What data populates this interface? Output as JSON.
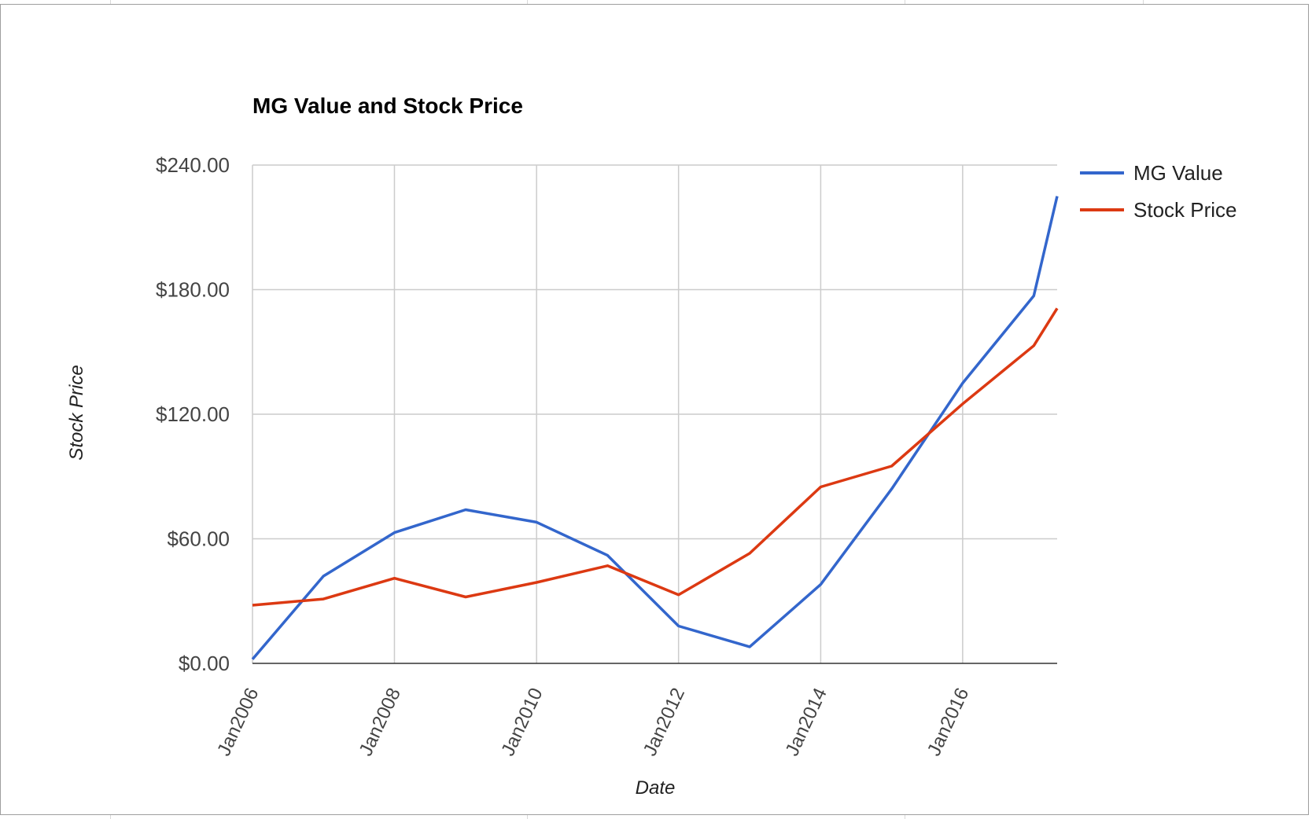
{
  "chart_data": {
    "type": "line",
    "title": "MG Value and Stock Price",
    "xlabel": "Date",
    "ylabel": "Stock Price",
    "x": [
      "2006-01-01",
      "2007-01-01",
      "2008-01-01",
      "2009-01-01",
      "2010-01-01",
      "2011-01-01",
      "2012-01-01",
      "2013-01-01",
      "2014-01-01",
      "2015-01-01",
      "2016-01-01",
      "2017-01-01",
      "2017-05-01"
    ],
    "x_ticks": [
      "Jan2006",
      "Jan2008",
      "Jan2010",
      "Jan2012",
      "Jan2014",
      "Jan2016"
    ],
    "x_tick_dates": [
      "2006-01-01",
      "2008-01-01",
      "2010-01-01",
      "2012-01-01",
      "2014-01-01",
      "2016-01-01"
    ],
    "xlim": [
      "2006-01-01",
      "2017-05-01"
    ],
    "y_ticks": [
      "$0.00",
      "$60.00",
      "$120.00",
      "$180.00",
      "$240.00"
    ],
    "y_tick_values": [
      0,
      60,
      120,
      180,
      240
    ],
    "ylim": [
      0,
      240
    ],
    "grid": true,
    "legend_position": "right",
    "series": [
      {
        "name": "MG Value",
        "color": "#3366cc",
        "values": [
          2,
          42,
          63,
          74,
          68,
          52,
          18,
          8,
          38,
          84,
          135,
          177,
          225
        ]
      },
      {
        "name": "Stock Price",
        "color": "#dc3912",
        "values": [
          28,
          31,
          41,
          32,
          39,
          47,
          33,
          53,
          85,
          95,
          125,
          153,
          171
        ]
      }
    ]
  }
}
